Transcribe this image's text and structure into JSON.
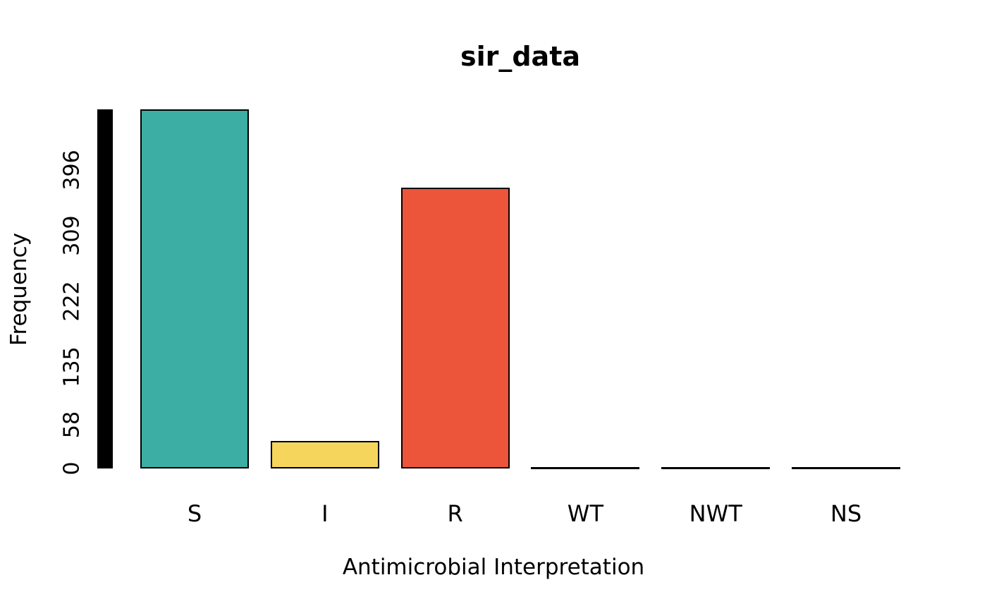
{
  "chart_data": {
    "type": "bar",
    "title": "sir_data",
    "xlabel": "Antimicrobial Interpretation",
    "ylabel": "Frequency",
    "categories": [
      "S",
      "I",
      "R",
      "WT",
      "NWT",
      "NS"
    ],
    "values": [
      477,
      37,
      373,
      0,
      0,
      0
    ],
    "bar_colors": [
      "#3CAEA3",
      "#F6D55C",
      "#ED553B",
      null,
      null,
      null
    ],
    "bar_border_color": "#000000",
    "yticks": [
      0,
      58,
      135,
      222,
      309,
      396
    ],
    "ylim": [
      0,
      477
    ],
    "axis_tick_band": true,
    "grid": false,
    "legend": false,
    "background_color": "#FFFFFF",
    "text_color": "#000000"
  }
}
